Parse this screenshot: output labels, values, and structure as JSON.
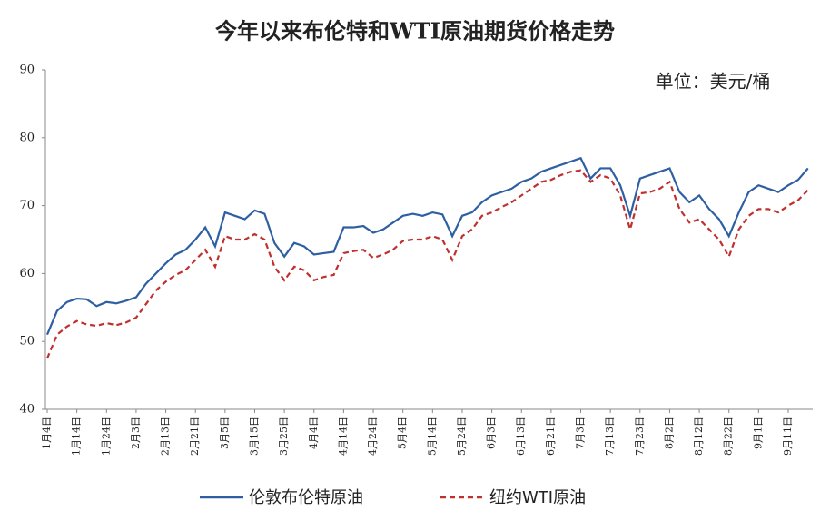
{
  "chart_data": {
    "type": "line",
    "title": "今年以来布伦特和WTI原油期货价格走势",
    "annotation": "单位：美元/桶",
    "categories": [
      "1月4日",
      null,
      null,
      "1月14日",
      null,
      null,
      "1月24日",
      null,
      null,
      "2月3日",
      null,
      null,
      "2月13日",
      null,
      null,
      "2月21日",
      null,
      null,
      "3月5日",
      null,
      null,
      "3月15日",
      null,
      null,
      "3月25日",
      null,
      null,
      "4月4日",
      null,
      null,
      "4月14日",
      null,
      null,
      "4月24日",
      null,
      null,
      "5月4日",
      null,
      null,
      "5月14日",
      null,
      null,
      "5月24日",
      null,
      null,
      "6月3日",
      null,
      null,
      "6月13日",
      null,
      null,
      "6月21日",
      null,
      null,
      "7月3日",
      null,
      null,
      "7月13日",
      null,
      null,
      "7月23日",
      null,
      null,
      "8月2日",
      null,
      null,
      "8月12日",
      null,
      null,
      "8月22日",
      null,
      null,
      "9月1日",
      null,
      null,
      "9月11日",
      null,
      null
    ],
    "series": [
      {
        "name": "伦敦布伦特原油",
        "color": "#2e5fa3",
        "dash": false,
        "values": [
          51.0,
          54.5,
          55.8,
          56.3,
          56.2,
          55.2,
          55.8,
          55.6,
          56.0,
          56.5,
          58.5,
          60.0,
          61.5,
          62.8,
          63.5,
          65.0,
          66.8,
          64.0,
          69.0,
          68.5,
          68.0,
          69.3,
          68.8,
          64.5,
          62.5,
          64.5,
          64.0,
          62.8,
          63.0,
          63.2,
          66.8,
          66.8,
          67.0,
          66.0,
          66.5,
          67.5,
          68.5,
          68.8,
          68.5,
          69.0,
          68.7,
          65.5,
          68.5,
          69.0,
          70.5,
          71.5,
          72.0,
          72.5,
          73.5,
          74.0,
          75.0,
          75.5,
          76.0,
          76.5,
          77.0,
          74.0,
          75.5,
          75.5,
          73.0,
          68.5,
          74.0,
          74.5,
          75.0,
          75.5,
          72.0,
          70.5,
          71.5,
          69.5,
          68.0,
          65.5,
          69.0,
          72.0,
          73.0,
          72.5,
          72.0,
          73.0,
          73.8,
          75.5
        ]
      },
      {
        "name": "纽约WTI原油",
        "color": "#c0302e",
        "dash": true,
        "values": [
          47.5,
          51.0,
          52.2,
          53.0,
          52.5,
          52.3,
          52.7,
          52.4,
          52.8,
          53.5,
          55.5,
          57.5,
          58.8,
          59.8,
          60.5,
          62.0,
          63.5,
          61.0,
          65.5,
          65.0,
          65.0,
          65.8,
          65.0,
          61.0,
          59.0,
          61.0,
          60.5,
          59.0,
          59.5,
          59.8,
          63.0,
          63.3,
          63.5,
          62.3,
          62.8,
          63.5,
          64.8,
          65.0,
          65.0,
          65.5,
          65.0,
          62.0,
          65.5,
          66.5,
          68.5,
          69.0,
          69.8,
          70.5,
          71.5,
          72.5,
          73.5,
          73.8,
          74.5,
          75.0,
          75.2,
          73.5,
          74.5,
          74.0,
          71.5,
          66.5,
          71.8,
          72.0,
          72.5,
          73.5,
          69.5,
          67.5,
          68.0,
          66.5,
          65.0,
          62.5,
          66.5,
          68.5,
          69.5,
          69.5,
          69.0,
          70.0,
          70.8,
          72.3
        ]
      }
    ],
    "ylim": [
      40,
      90
    ],
    "yticks": [
      40,
      50,
      60,
      70,
      80,
      90
    ],
    "grid": false
  }
}
